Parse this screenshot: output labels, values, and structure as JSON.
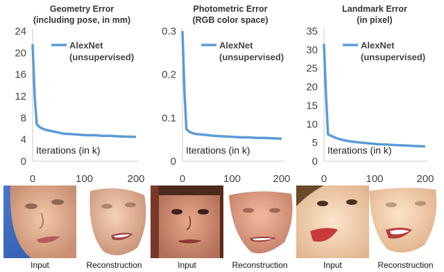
{
  "chart_data": [
    {
      "type": "line",
      "title": [
        "Geometry Error",
        "(including pose, in mm)"
      ],
      "xlabel": "Iterations (in k)",
      "ylabel": "",
      "xlim": [
        0,
        200
      ],
      "ylim": [
        0,
        24
      ],
      "xticks": [
        "0",
        "100",
        "200"
      ],
      "yticks": [
        "0",
        "4",
        "8",
        "12",
        "16",
        "20",
        "24"
      ],
      "series": [
        {
          "name": "AlexNet (unsupervised)",
          "legend_lines": [
            "AlexNet",
            "(unsupervised)"
          ],
          "color": "#5b9bd5",
          "x": [
            0,
            4,
            8,
            15,
            25,
            35,
            45,
            60,
            75,
            90,
            105,
            120,
            135,
            150,
            165,
            180,
            200
          ],
          "y": [
            21.6,
            12.0,
            6.8,
            6.2,
            5.8,
            5.6,
            5.4,
            5.1,
            5.0,
            4.9,
            4.8,
            4.8,
            4.7,
            4.7,
            4.6,
            4.55,
            4.5
          ]
        }
      ]
    },
    {
      "type": "line",
      "title": [
        "Photometric Error",
        "(RGB color space)"
      ],
      "xlabel": "Iterations (in k)",
      "ylabel": "",
      "xlim": [
        0,
        200
      ],
      "ylim": [
        0,
        0.3
      ],
      "xticks": [
        "0",
        "100",
        "200"
      ],
      "yticks": [
        "0",
        "0.1",
        "0.2",
        "0.3"
      ],
      "series": [
        {
          "name": "AlexNet (unsupervised)",
          "legend_lines": [
            "AlexNet",
            "(unsupervised)"
          ],
          "color": "#5b9bd5",
          "x": [
            0,
            4,
            8,
            15,
            25,
            35,
            45,
            60,
            75,
            90,
            105,
            120,
            135,
            150,
            165,
            180,
            200
          ],
          "y": [
            0.3,
            0.16,
            0.074,
            0.067,
            0.063,
            0.062,
            0.061,
            0.059,
            0.058,
            0.057,
            0.056,
            0.055,
            0.055,
            0.054,
            0.054,
            0.053,
            0.052
          ]
        }
      ]
    },
    {
      "type": "line",
      "title": [
        "Landmark Error",
        "(in pixel)"
      ],
      "xlabel": "Iterations (in k)",
      "ylabel": "",
      "xlim": [
        0,
        200
      ],
      "ylim": [
        0,
        35
      ],
      "xticks": [
        "0",
        "100",
        "200"
      ],
      "yticks": [
        "0",
        "5",
        "10",
        "15",
        "20",
        "25",
        "30",
        "35"
      ],
      "series": [
        {
          "name": "AlexNet (unsupervised)",
          "legend_lines": [
            "AlexNet",
            "(unsupervised)"
          ],
          "color": "#5b9bd5",
          "x": [
            0,
            4,
            8,
            15,
            25,
            35,
            45,
            60,
            75,
            90,
            105,
            120,
            135,
            150,
            165,
            180,
            200
          ],
          "y": [
            31.6,
            18.0,
            7.2,
            6.8,
            6.2,
            5.8,
            5.5,
            5.2,
            5.0,
            4.8,
            4.6,
            4.5,
            4.4,
            4.3,
            4.2,
            4.1,
            4.0
          ]
        }
      ]
    }
  ],
  "faces": [
    {
      "caption": "Input",
      "kind": "photo-1"
    },
    {
      "caption": "Reconstruction",
      "kind": "recon-1"
    },
    {
      "caption": "Input",
      "kind": "photo-2"
    },
    {
      "caption": "Reconstruction",
      "kind": "recon-2"
    },
    {
      "caption": "Input",
      "kind": "photo-3"
    },
    {
      "caption": "Reconstruction",
      "kind": "recon-3"
    }
  ]
}
